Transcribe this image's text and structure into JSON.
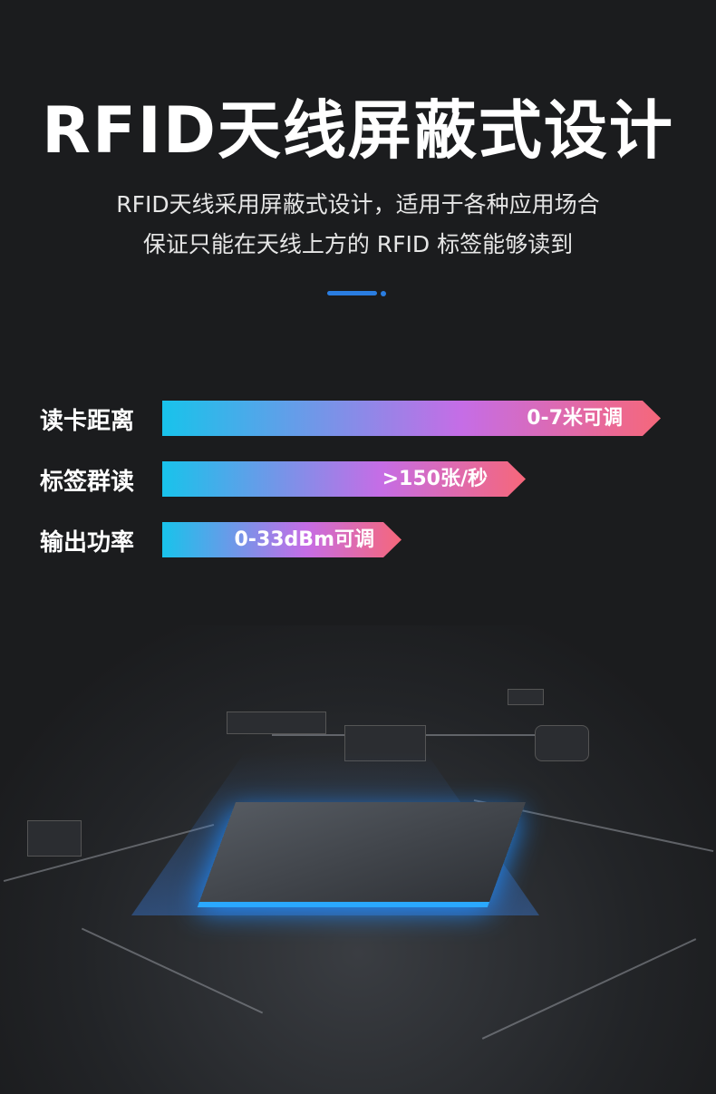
{
  "header": {
    "title": "RFID天线屏蔽式设计",
    "subtitle_line1": "RFID天线采用屏蔽式设计，适用于各种应用场合",
    "subtitle_line2": "保证只能在天线上方的 RFID 标签能够读到"
  },
  "specs": [
    {
      "label": "读卡距离",
      "value": "0-7米可调",
      "fill_percent": 100
    },
    {
      "label": "标签群读",
      "value": ">150张/秒",
      "fill_percent": 73
    },
    {
      "label": "输出功率",
      "value": "0-33dBm可调",
      "fill_percent": 48
    }
  ],
  "colors": {
    "background": "#1b1c1e",
    "accent": "#2a7de1",
    "gradient_start": "#18c3eb",
    "gradient_mid": "#c56de6",
    "gradient_end": "#f6677a"
  }
}
